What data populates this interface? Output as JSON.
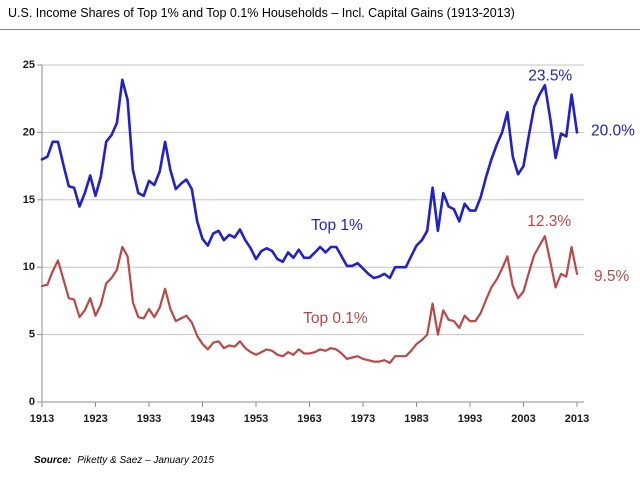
{
  "title": "U.S. Income Shares of Top 1% and Top 0.1% Households – Incl. Capital Gains (1913-2013)",
  "source": {
    "label": "Source:",
    "text": "Piketty & Saez – January 2015"
  },
  "colors": {
    "top1": "#2121c8",
    "top01": "#b84947",
    "grid": "#c6c6c6",
    "axis": "#8e8e8e",
    "text": "#1a1a1a"
  },
  "chart_data": {
    "type": "line",
    "title": "U.S. Income Shares of Top 1% and Top 0.1% Households – Incl. Capital Gains (1913-2013)",
    "xlabel": "",
    "ylabel": "",
    "x_range": [
      1913,
      2013
    ],
    "x_ticks": [
      1913,
      1923,
      1933,
      1943,
      1953,
      1963,
      1973,
      1983,
      1993,
      2003,
      2013
    ],
    "ylim": [
      0,
      25
    ],
    "y_ticks": [
      0,
      5,
      10,
      15,
      20,
      25
    ],
    "grid": "horizontal",
    "legend": "inline-labels",
    "series": [
      {
        "name": "Top 1%",
        "color_key": "top1",
        "values": [
          18.0,
          18.2,
          19.3,
          19.3,
          17.6,
          16.0,
          15.9,
          14.5,
          15.5,
          16.8,
          15.3,
          16.7,
          19.3,
          19.8,
          20.7,
          23.9,
          22.4,
          17.2,
          15.5,
          15.3,
          16.4,
          16.1,
          17.1,
          19.3,
          17.2,
          15.8,
          16.2,
          16.5,
          15.8,
          13.4,
          12.1,
          11.6,
          12.5,
          12.7,
          12.0,
          12.4,
          12.2,
          12.8,
          12.0,
          11.4,
          10.6,
          11.2,
          11.4,
          11.2,
          10.6,
          10.4,
          11.1,
          10.7,
          11.3,
          10.7,
          10.7,
          11.1,
          11.5,
          11.1,
          11.5,
          11.5,
          10.8,
          10.1,
          10.1,
          10.3,
          9.9,
          9.5,
          9.2,
          9.3,
          9.5,
          9.2,
          10.0,
          10.0,
          10.0,
          10.8,
          11.6,
          12.0,
          12.7,
          15.9,
          12.7,
          15.5,
          14.5,
          14.3,
          13.4,
          14.7,
          14.2,
          14.2,
          15.2,
          16.7,
          18.0,
          19.1,
          20.0,
          21.5,
          18.2,
          16.9,
          17.5,
          19.8,
          21.9,
          22.8,
          23.5,
          21.0,
          18.1,
          19.9,
          19.7,
          22.8,
          20.0
        ]
      },
      {
        "name": "Top 0.1%",
        "color_key": "top01",
        "values": [
          8.6,
          8.7,
          9.7,
          10.5,
          9.1,
          7.7,
          7.6,
          6.3,
          6.8,
          7.7,
          6.4,
          7.2,
          8.8,
          9.2,
          9.8,
          11.5,
          10.8,
          7.4,
          6.3,
          6.2,
          6.9,
          6.3,
          7.0,
          8.4,
          6.9,
          6.0,
          6.2,
          6.4,
          5.9,
          4.9,
          4.3,
          3.9,
          4.4,
          4.5,
          4.0,
          4.2,
          4.1,
          4.5,
          4.0,
          3.7,
          3.5,
          3.7,
          3.9,
          3.8,
          3.5,
          3.4,
          3.7,
          3.5,
          3.9,
          3.6,
          3.6,
          3.7,
          3.9,
          3.8,
          4.0,
          3.9,
          3.6,
          3.2,
          3.3,
          3.4,
          3.2,
          3.1,
          3.0,
          3.0,
          3.1,
          2.9,
          3.4,
          3.4,
          3.4,
          3.8,
          4.3,
          4.6,
          5.0,
          7.3,
          5.0,
          6.8,
          6.1,
          6.0,
          5.5,
          6.4,
          6.0,
          6.0,
          6.6,
          7.6,
          8.5,
          9.1,
          9.9,
          10.8,
          8.6,
          7.7,
          8.2,
          9.6,
          10.9,
          11.6,
          12.3,
          10.4,
          8.5,
          9.5,
          9.3,
          11.5,
          9.5
        ]
      }
    ],
    "annotations": [
      {
        "text": "23.5%",
        "series": "top1",
        "year": 2008,
        "value": 24.2,
        "dx": 0,
        "anchor": "middle"
      },
      {
        "text": "20.0%",
        "series": "top1",
        "year": 2013,
        "value": 20.1,
        "dx": 14,
        "anchor": "start"
      },
      {
        "text": "Top 1%",
        "series": "top1",
        "year": 1963.3,
        "value": 13.1,
        "dx": 0,
        "anchor": "start"
      },
      {
        "text": "Top 0.1%",
        "series": "top01",
        "year": 1961.8,
        "value": 6.2,
        "dx": 0,
        "anchor": "start"
      },
      {
        "text": "12.3%",
        "series": "top01",
        "year": 2007.8,
        "value": 13.4,
        "dx": 0,
        "anchor": "middle"
      },
      {
        "text": "9.5%",
        "series": "top01",
        "year": 2013,
        "value": 9.3,
        "dx": 17,
        "anchor": "start"
      }
    ]
  }
}
